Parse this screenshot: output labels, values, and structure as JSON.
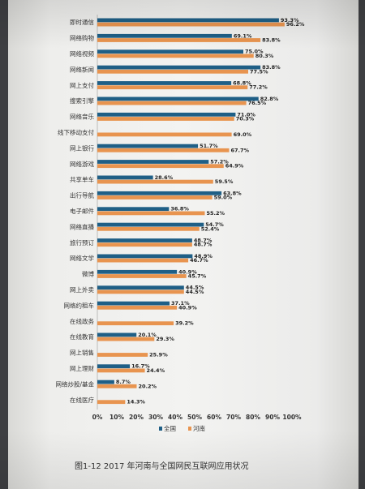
{
  "chart_data": {
    "type": "bar",
    "orientation": "horizontal",
    "categories": [
      "即时通信",
      "网络购物",
      "网络视频",
      "网络新闻",
      "网上支付",
      "搜索引擎",
      "网络音乐",
      "线下移动支付",
      "网上银行",
      "网络游戏",
      "共享单车",
      "出行导航",
      "电子邮件",
      "网络直播",
      "旅行预订",
      "网络文学",
      "微博",
      "网上外卖",
      "网络约租车",
      "在线政务",
      "在线教育",
      "网上销售",
      "网上理财",
      "网络炒股/基金",
      "在线医疗"
    ],
    "series": [
      {
        "name": "全国",
        "color": "#1f5f86",
        "values": [
          93.3,
          69.1,
          75.0,
          83.8,
          68.8,
          82.8,
          71.0,
          null,
          51.7,
          57.2,
          28.6,
          63.8,
          36.8,
          54.7,
          48.7,
          48.9,
          40.9,
          44.5,
          37.1,
          null,
          20.1,
          null,
          16.7,
          8.7,
          null
        ]
      },
      {
        "name": "河南",
        "color": "#e8944f",
        "values": [
          96.2,
          83.8,
          80.3,
          77.5,
          77.2,
          76.5,
          70.3,
          69.0,
          67.7,
          64.9,
          59.5,
          59.0,
          55.2,
          52.4,
          48.7,
          46.7,
          45.7,
          44.5,
          40.9,
          39.2,
          29.3,
          25.9,
          24.4,
          20.2,
          14.3
        ]
      }
    ],
    "xlim": [
      0,
      100
    ],
    "xticks": [
      "0%",
      "10%",
      "20%",
      "30%",
      "40%",
      "50%",
      "60%",
      "70%",
      "80%",
      "90%",
      "100%"
    ],
    "legend": [
      "全国",
      "河南"
    ],
    "legend_position": "bottom",
    "caption": "图1-12   2017 年河南与全国网民互联网应用状况"
  }
}
